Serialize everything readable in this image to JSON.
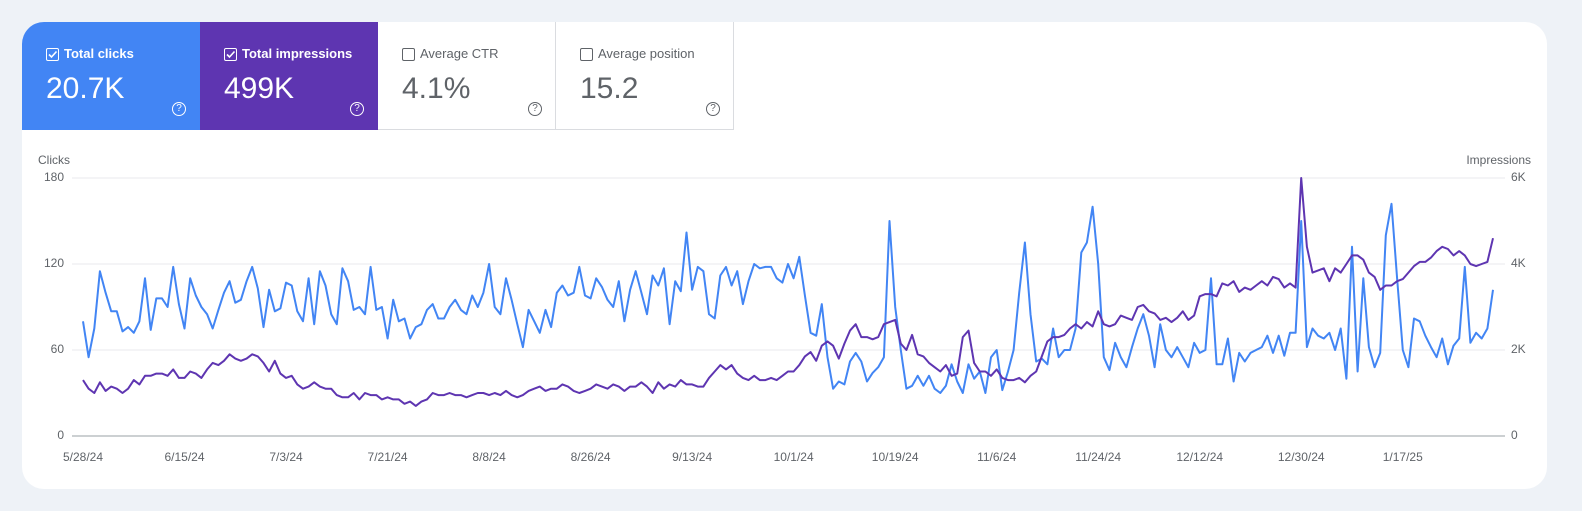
{
  "cards": [
    {
      "label": "Total clicks",
      "value": "20.7K",
      "checked": true,
      "color": "#4285f4"
    },
    {
      "label": "Total impressions",
      "value": "499K",
      "checked": true,
      "color": "#5e35b1"
    },
    {
      "label": "Average CTR",
      "value": "4.1%",
      "checked": false,
      "color": "#ffffff"
    },
    {
      "label": "Average position",
      "value": "15.2",
      "checked": false,
      "color": "#ffffff"
    }
  ],
  "chart_data": {
    "type": "line",
    "y_label": "Clicks",
    "y2_label": "Impressions",
    "categories": [
      "5/28/24",
      null,
      null,
      null,
      null,
      null,
      null,
      null,
      null,
      null,
      null,
      null,
      null,
      null,
      null,
      null,
      null,
      null,
      "6/15/24",
      null,
      null,
      null,
      null,
      null,
      null,
      null,
      null,
      null,
      null,
      null,
      null,
      null,
      null,
      null,
      null,
      null,
      "7/3/24",
      null,
      null,
      null,
      null,
      null,
      null,
      null,
      null,
      null,
      null,
      null,
      null,
      null,
      null,
      null,
      null,
      null,
      "7/21/24",
      null,
      null,
      null,
      null,
      null,
      null,
      null,
      null,
      null,
      null,
      null,
      null,
      null,
      null,
      null,
      null,
      null,
      "8/8/24",
      null,
      null,
      null,
      null,
      null,
      null,
      null,
      null,
      null,
      null,
      null,
      null,
      null,
      null,
      null,
      null,
      null,
      "8/26/24",
      null,
      null,
      null,
      null,
      null,
      null,
      null,
      null,
      null,
      null,
      null,
      null,
      null,
      null,
      null,
      null,
      null,
      "9/13/24",
      null,
      null,
      null,
      null,
      null,
      null,
      null,
      null,
      null,
      null,
      null,
      null,
      null,
      null,
      null,
      null,
      null,
      "10/1/24",
      null,
      null,
      null,
      null,
      null,
      null,
      null,
      null,
      null,
      null,
      null,
      null,
      null,
      null,
      null,
      null,
      null,
      "10/19/24",
      null,
      null,
      null,
      null,
      null,
      null,
      null,
      null,
      null,
      null,
      null,
      null,
      null,
      null,
      null,
      null,
      null,
      "11/6/24",
      null,
      null,
      null,
      null,
      null,
      null,
      null,
      null,
      null,
      null,
      null,
      null,
      null,
      null,
      null,
      null,
      null,
      "11/24/24",
      null,
      null,
      null,
      null,
      null,
      null,
      null,
      null,
      null,
      null,
      null,
      null,
      null,
      null,
      null,
      null,
      null,
      "12/12/24",
      null,
      null,
      null,
      null,
      null,
      null,
      null,
      null,
      null,
      null,
      null,
      null,
      null,
      null,
      null,
      null,
      null,
      "12/30/24",
      null,
      null,
      null,
      null,
      null,
      null,
      null,
      null,
      null,
      null,
      null,
      null,
      null,
      null,
      null,
      null,
      null,
      "1/17/25",
      null,
      null,
      null,
      null,
      null,
      null,
      null,
      null,
      null,
      null,
      null,
      null,
      null,
      null,
      null,
      null
    ],
    "series": [
      {
        "name": "Clicks",
        "color": "#4285f4",
        "values": [
          80,
          55,
          75,
          115,
          100,
          87,
          87,
          73,
          76,
          72,
          80,
          110,
          74,
          96,
          96,
          90,
          118,
          92,
          75,
          110,
          98,
          90,
          85,
          75,
          88,
          100,
          108,
          93,
          95,
          108,
          118,
          103,
          76,
          102,
          87,
          89,
          107,
          105,
          87,
          80,
          110,
          78,
          115,
          105,
          85,
          78,
          117,
          108,
          88,
          90,
          85,
          118,
          88,
          90,
          68,
          95,
          80,
          82,
          68,
          76,
          78,
          88,
          92,
          82,
          82,
          90,
          95,
          88,
          85,
          98,
          90,
          100,
          120,
          90,
          85,
          110,
          95,
          78,
          62,
          88,
          80,
          72,
          88,
          76,
          100,
          105,
          98,
          100,
          118,
          98,
          96,
          110,
          104,
          95,
          90,
          108,
          80,
          102,
          115,
          100,
          85,
          112,
          105,
          117,
          78,
          108,
          101,
          142,
          102,
          118,
          115,
          85,
          82,
          112,
          118,
          105,
          115,
          92,
          108,
          120,
          117,
          118,
          118,
          110,
          107,
          120,
          110,
          125,
          98,
          72,
          70,
          92,
          55,
          33,
          38,
          36,
          52,
          58,
          52,
          38,
          44,
          48,
          55,
          150,
          90,
          60,
          33,
          35,
          42,
          35,
          42,
          33,
          30,
          35,
          50,
          38,
          30,
          50,
          40,
          45,
          30,
          55,
          60,
          32,
          45,
          60,
          100,
          135,
          85,
          52,
          54,
          50,
          75,
          55,
          60,
          60,
          75,
          128,
          135,
          160,
          120,
          55,
          46,
          65,
          55,
          48,
          62,
          75,
          85,
          70,
          48,
          78,
          60,
          55,
          62,
          55,
          48,
          65,
          58,
          60,
          110,
          50,
          50,
          68,
          38,
          58,
          52,
          58,
          60,
          62,
          70,
          58,
          70,
          56,
          72,
          72,
          150,
          62,
          75,
          70,
          68,
          72,
          60,
          75,
          40,
          132,
          45,
          110,
          62,
          48,
          58,
          140,
          162,
          110,
          60,
          48,
          82,
          80,
          70,
          62,
          55,
          68,
          50,
          63,
          68,
          118,
          65,
          72,
          68,
          75,
          102
        ]
      },
      {
        "name": "Impressions",
        "color": "#5e35b1",
        "axis": "y2",
        "values": [
          1300,
          1100,
          1000,
          1250,
          1050,
          1150,
          1100,
          1000,
          1100,
          1300,
          1200,
          1400,
          1400,
          1450,
          1450,
          1400,
          1550,
          1350,
          1350,
          1500,
          1450,
          1350,
          1550,
          1700,
          1650,
          1750,
          1900,
          1800,
          1750,
          1800,
          1900,
          1850,
          1700,
          1500,
          1750,
          1450,
          1350,
          1400,
          1200,
          1100,
          1150,
          1250,
          1150,
          1100,
          1100,
          950,
          900,
          900,
          1000,
          850,
          1000,
          950,
          950,
          850,
          900,
          850,
          850,
          750,
          800,
          700,
          800,
          850,
          1000,
          950,
          950,
          1000,
          950,
          950,
          900,
          950,
          1000,
          1000,
          950,
          1000,
          950,
          1050,
          950,
          900,
          950,
          1050,
          1100,
          1150,
          1050,
          1100,
          1100,
          1200,
          1150,
          1050,
          1000,
          1050,
          1100,
          1200,
          1150,
          1100,
          1200,
          1150,
          1050,
          1150,
          1150,
          1250,
          1150,
          1000,
          1250,
          1100,
          1200,
          1150,
          1300,
          1200,
          1200,
          1150,
          1150,
          1350,
          1500,
          1650,
          1550,
          1650,
          1450,
          1350,
          1300,
          1400,
          1300,
          1300,
          1350,
          1300,
          1400,
          1500,
          1500,
          1650,
          1850,
          1950,
          1750,
          2100,
          2200,
          2100,
          1800,
          2150,
          2450,
          2600,
          2300,
          2300,
          2250,
          2300,
          2600,
          2650,
          2700,
          2150,
          2000,
          2350,
          1900,
          1850,
          1700,
          1600,
          1500,
          1650,
          1400,
          1450,
          2300,
          2450,
          1700,
          1500,
          1500,
          1400,
          1550,
          1350,
          1300,
          1300,
          1350,
          1250,
          1400,
          1500,
          1850,
          2200,
          2300,
          2300,
          2350,
          2500,
          2600,
          2500,
          2650,
          2550,
          2900,
          2600,
          2550,
          2600,
          2800,
          2750,
          2700,
          3000,
          3050,
          2900,
          2850,
          2700,
          2750,
          2650,
          2750,
          2900,
          2700,
          2800,
          3250,
          3300,
          3300,
          3250,
          3550,
          3500,
          3600,
          3350,
          3450,
          3400,
          3500,
          3600,
          3500,
          3700,
          3650,
          3450,
          3550,
          3450,
          6000,
          4400,
          3800,
          3850,
          3900,
          3600,
          3900,
          3800,
          4000,
          4200,
          4200,
          4100,
          3800,
          3700,
          3400,
          3500,
          3500,
          3600,
          3650,
          3800,
          3950,
          4050,
          4050,
          4150,
          4300,
          4400,
          4350,
          4200,
          4300,
          4200,
          4000,
          3950,
          4000,
          4050,
          4600
        ]
      }
    ],
    "ylim": [
      0,
      180
    ],
    "yticks": [
      0,
      60,
      120,
      180
    ],
    "y2lim": [
      0,
      6000
    ],
    "y2ticks": [
      0,
      {
        "value": 2000,
        "label": "2K"
      },
      {
        "value": 4000,
        "label": "4K"
      },
      {
        "value": 6000,
        "label": "6K"
      }
    ],
    "grid": true
  }
}
